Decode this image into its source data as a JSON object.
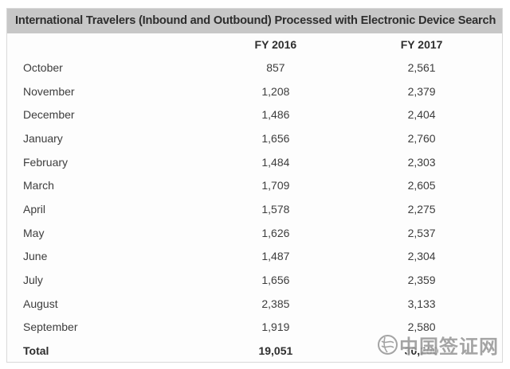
{
  "table": {
    "title": "International Travelers (Inbound and Outbound) Processed with Electronic Device Search",
    "columns": [
      "",
      "FY 2016",
      "FY 2017"
    ],
    "rows": [
      {
        "label": "October",
        "fy2016": "857",
        "fy2017": "2,561"
      },
      {
        "label": "November",
        "fy2016": "1,208",
        "fy2017": "2,379"
      },
      {
        "label": "December",
        "fy2016": "1,486",
        "fy2017": "2,404"
      },
      {
        "label": "January",
        "fy2016": "1,656",
        "fy2017": "2,760"
      },
      {
        "label": "February",
        "fy2016": "1,484",
        "fy2017": "2,303"
      },
      {
        "label": "March",
        "fy2016": "1,709",
        "fy2017": "2,605"
      },
      {
        "label": "April",
        "fy2016": "1,578",
        "fy2017": "2,275"
      },
      {
        "label": "May",
        "fy2016": "1,626",
        "fy2017": "2,537"
      },
      {
        "label": "June",
        "fy2016": "1,487",
        "fy2017": "2,304"
      },
      {
        "label": "July",
        "fy2016": "1,656",
        "fy2017": "2,359"
      },
      {
        "label": "August",
        "fy2016": "2,385",
        "fy2017": "3,133"
      },
      {
        "label": "September",
        "fy2016": "1,919",
        "fy2017": "2,580"
      },
      {
        "label": "Total",
        "fy2016": "19,051",
        "fy2017": "30,200",
        "total": true
      }
    ]
  },
  "watermark": {
    "text": "中国签证网",
    "logo_icon": "globe-seal-icon"
  },
  "colors": {
    "title_bar_bg": "#c7c7c7",
    "card_bg": "#fdfdfd",
    "border": "#d9d9d9",
    "text": "#3d3d3d",
    "watermark": "#9b9b9b"
  },
  "chart_data": {
    "type": "table",
    "title": "International Travelers (Inbound and Outbound) Processed with Electronic Device Search",
    "categories": [
      "October",
      "November",
      "December",
      "January",
      "February",
      "March",
      "April",
      "May",
      "June",
      "July",
      "August",
      "September",
      "Total"
    ],
    "series": [
      {
        "name": "FY 2016",
        "values": [
          857,
          1208,
          1486,
          1656,
          1484,
          1709,
          1578,
          1626,
          1487,
          1656,
          2385,
          1919,
          19051
        ]
      },
      {
        "name": "FY 2017",
        "values": [
          2561,
          2379,
          2404,
          2760,
          2303,
          2605,
          2275,
          2537,
          2304,
          2359,
          3133,
          2580,
          30200
        ]
      }
    ]
  }
}
